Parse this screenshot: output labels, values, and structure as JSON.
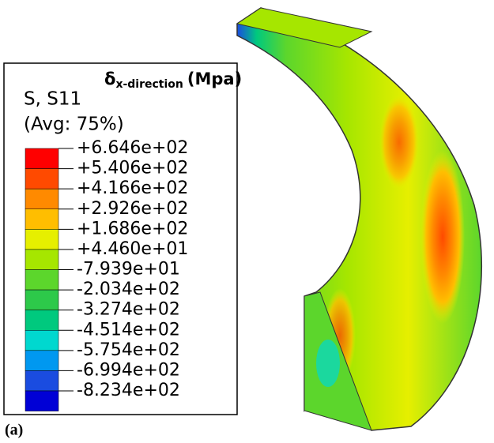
{
  "legend": {
    "heading": {
      "symbol": "δ",
      "subscript": "x-direction",
      "unit": "(Mpa)"
    },
    "variable": "S, S11",
    "averaging": "(Avg: 75%)",
    "labels": [
      "+6.646e+02",
      "+5.406e+02",
      "+4.166e+02",
      "+2.926e+02",
      "+1.686e+02",
      "+4.460e+01",
      "-7.939e+01",
      "-2.034e+02",
      "-3.274e+02",
      "-4.514e+02",
      "-5.754e+02",
      "-6.994e+02",
      "-8.234e+02"
    ],
    "colors": [
      "#ff0000",
      "#ff4a00",
      "#ff8a00",
      "#ffbe00",
      "#e6ef00",
      "#a6e600",
      "#5cd62c",
      "#2dc94a",
      "#00c97e",
      "#00d8cf",
      "#0098f0",
      "#1a4ce0",
      "#0000d6"
    ]
  },
  "panel_label": "(a)"
}
